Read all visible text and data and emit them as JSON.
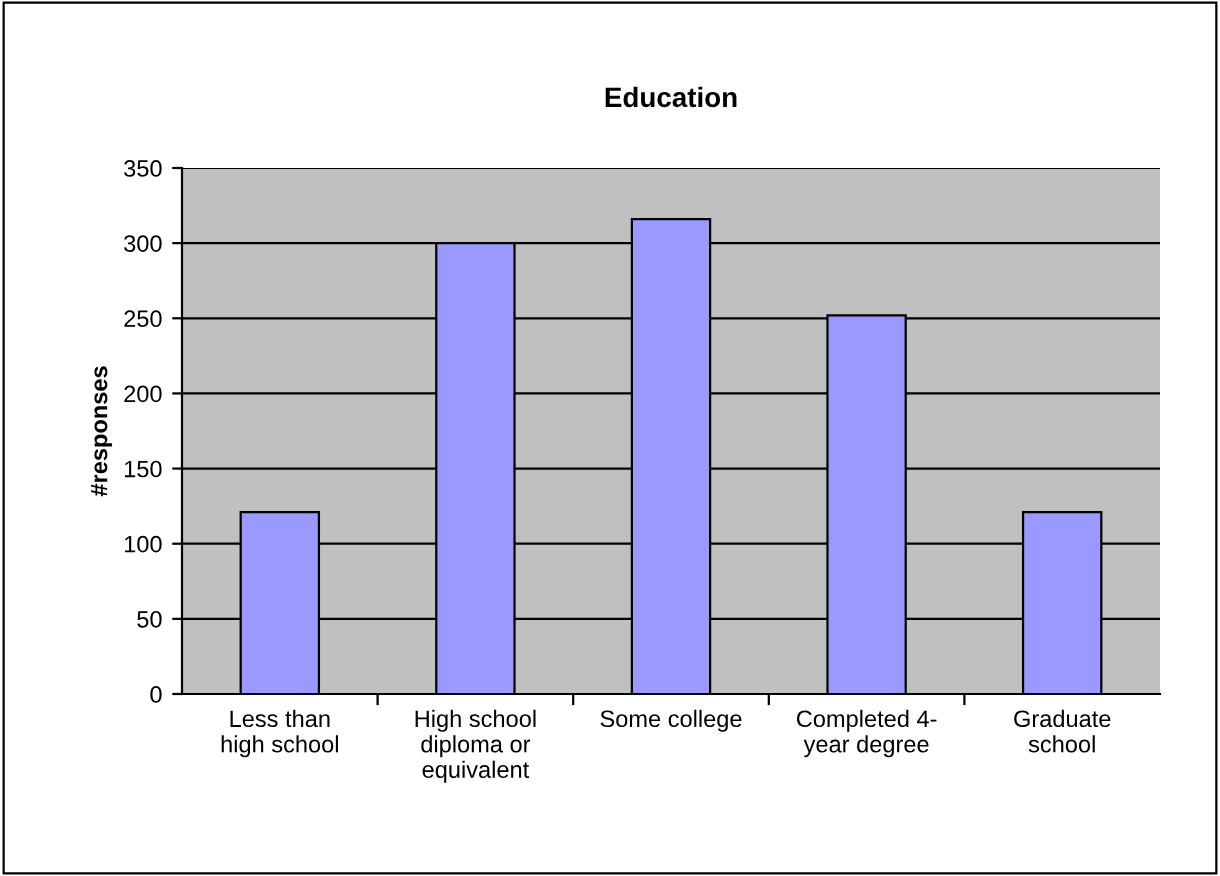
{
  "chart_data": {
    "type": "bar",
    "title": "Education",
    "ylabel": "#responses",
    "categories": [
      "Less than\nhigh school",
      "High school\ndiploma or\nequivalent",
      "Some college",
      "Completed 4-\nyear degree",
      "Graduate\nschool"
    ],
    "values": [
      121,
      300,
      316,
      252,
      121
    ],
    "color": "#9999ff",
    "ylim": [
      0,
      350
    ],
    "yticks": [
      0,
      50,
      100,
      150,
      200,
      250,
      300,
      350
    ],
    "grid": "y"
  }
}
